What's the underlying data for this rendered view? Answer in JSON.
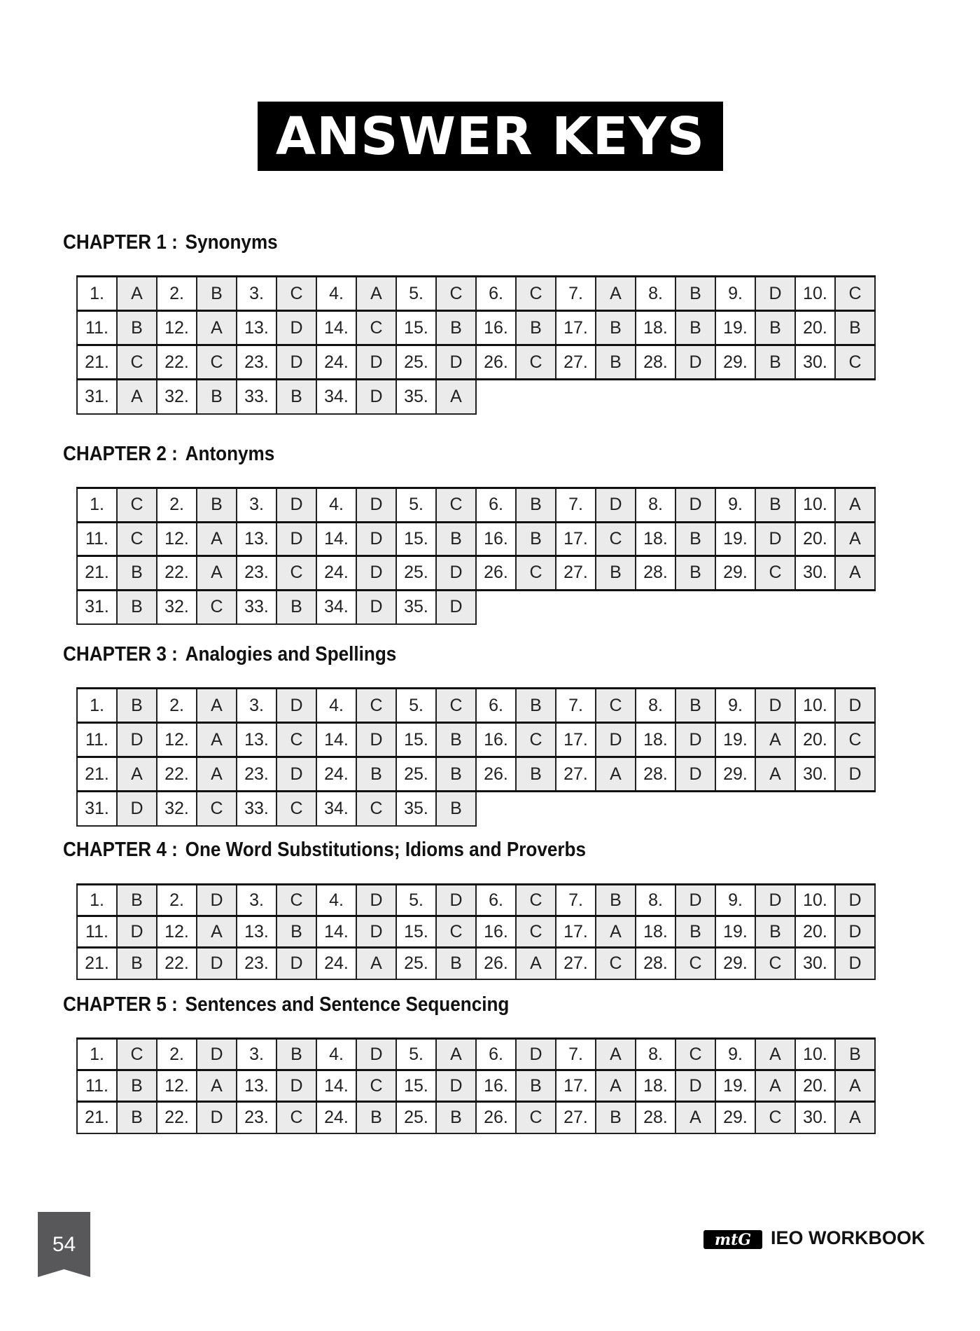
{
  "title": "ANSWER KEYS",
  "chapters": [
    {
      "label": "CHAPTER 1 :",
      "name": "Synonyms",
      "rows": [
        [
          [
            "1.",
            "A"
          ],
          [
            "2.",
            "B"
          ],
          [
            "3.",
            "C"
          ],
          [
            "4.",
            "A"
          ],
          [
            "5.",
            "C"
          ],
          [
            "6.",
            "C"
          ],
          [
            "7.",
            "A"
          ],
          [
            "8.",
            "B"
          ],
          [
            "9.",
            "D"
          ],
          [
            "10.",
            "C"
          ]
        ],
        [
          [
            "11.",
            "B"
          ],
          [
            "12.",
            "A"
          ],
          [
            "13.",
            "D"
          ],
          [
            "14.",
            "C"
          ],
          [
            "15.",
            "B"
          ],
          [
            "16.",
            "B"
          ],
          [
            "17.",
            "B"
          ],
          [
            "18.",
            "B"
          ],
          [
            "19.",
            "B"
          ],
          [
            "20.",
            "B"
          ]
        ],
        [
          [
            "21.",
            "C"
          ],
          [
            "22.",
            "C"
          ],
          [
            "23.",
            "D"
          ],
          [
            "24.",
            "D"
          ],
          [
            "25.",
            "D"
          ],
          [
            "26.",
            "C"
          ],
          [
            "27.",
            "B"
          ],
          [
            "28.",
            "D"
          ],
          [
            "29.",
            "B"
          ],
          [
            "30.",
            "C"
          ]
        ],
        [
          [
            "31.",
            "A"
          ],
          [
            "32.",
            "B"
          ],
          [
            "33.",
            "B"
          ],
          [
            "34.",
            "D"
          ],
          [
            "35.",
            "A"
          ]
        ]
      ]
    },
    {
      "label": "CHAPTER 2 :",
      "name": "Antonyms",
      "rows": [
        [
          [
            "1.",
            "C"
          ],
          [
            "2.",
            "B"
          ],
          [
            "3.",
            "D"
          ],
          [
            "4.",
            "D"
          ],
          [
            "5.",
            "C"
          ],
          [
            "6.",
            "B"
          ],
          [
            "7.",
            "D"
          ],
          [
            "8.",
            "D"
          ],
          [
            "9.",
            "B"
          ],
          [
            "10.",
            "A"
          ]
        ],
        [
          [
            "11.",
            "C"
          ],
          [
            "12.",
            "A"
          ],
          [
            "13.",
            "D"
          ],
          [
            "14.",
            "D"
          ],
          [
            "15.",
            "B"
          ],
          [
            "16.",
            "B"
          ],
          [
            "17.",
            "C"
          ],
          [
            "18.",
            "B"
          ],
          [
            "19.",
            "D"
          ],
          [
            "20.",
            "A"
          ]
        ],
        [
          [
            "21.",
            "B"
          ],
          [
            "22.",
            "A"
          ],
          [
            "23.",
            "C"
          ],
          [
            "24.",
            "D"
          ],
          [
            "25.",
            "D"
          ],
          [
            "26.",
            "C"
          ],
          [
            "27.",
            "B"
          ],
          [
            "28.",
            "B"
          ],
          [
            "29.",
            "C"
          ],
          [
            "30.",
            "A"
          ]
        ],
        [
          [
            "31.",
            "B"
          ],
          [
            "32.",
            "C"
          ],
          [
            "33.",
            "B"
          ],
          [
            "34.",
            "D"
          ],
          [
            "35.",
            "D"
          ]
        ]
      ]
    },
    {
      "label": "CHAPTER 3 :",
      "name": "Analogies and Spellings",
      "rows": [
        [
          [
            "1.",
            "B"
          ],
          [
            "2.",
            "A"
          ],
          [
            "3.",
            "D"
          ],
          [
            "4.",
            "C"
          ],
          [
            "5.",
            "C"
          ],
          [
            "6.",
            "B"
          ],
          [
            "7.",
            "C"
          ],
          [
            "8.",
            "B"
          ],
          [
            "9.",
            "D"
          ],
          [
            "10.",
            "D"
          ]
        ],
        [
          [
            "11.",
            "D"
          ],
          [
            "12.",
            "A"
          ],
          [
            "13.",
            "C"
          ],
          [
            "14.",
            "D"
          ],
          [
            "15.",
            "B"
          ],
          [
            "16.",
            "C"
          ],
          [
            "17.",
            "D"
          ],
          [
            "18.",
            "D"
          ],
          [
            "19.",
            "A"
          ],
          [
            "20.",
            "C"
          ]
        ],
        [
          [
            "21.",
            "A"
          ],
          [
            "22.",
            "A"
          ],
          [
            "23.",
            "D"
          ],
          [
            "24.",
            "B"
          ],
          [
            "25.",
            "B"
          ],
          [
            "26.",
            "B"
          ],
          [
            "27.",
            "A"
          ],
          [
            "28.",
            "D"
          ],
          [
            "29.",
            "A"
          ],
          [
            "30.",
            "D"
          ]
        ],
        [
          [
            "31.",
            "D"
          ],
          [
            "32.",
            "C"
          ],
          [
            "33.",
            "C"
          ],
          [
            "34.",
            "C"
          ],
          [
            "35.",
            "B"
          ]
        ]
      ]
    },
    {
      "label": "CHAPTER 4 :",
      "name": "One Word Substitutions; Idioms and Proverbs",
      "rows": [
        [
          [
            "1.",
            "B"
          ],
          [
            "2.",
            "D"
          ],
          [
            "3.",
            "C"
          ],
          [
            "4.",
            "D"
          ],
          [
            "5.",
            "D"
          ],
          [
            "6.",
            "C"
          ],
          [
            "7.",
            "B"
          ],
          [
            "8.",
            "D"
          ],
          [
            "9.",
            "D"
          ],
          [
            "10.",
            "D"
          ]
        ],
        [
          [
            "11.",
            "D"
          ],
          [
            "12.",
            "A"
          ],
          [
            "13.",
            "B"
          ],
          [
            "14.",
            "D"
          ],
          [
            "15.",
            "C"
          ],
          [
            "16.",
            "C"
          ],
          [
            "17.",
            "A"
          ],
          [
            "18.",
            "B"
          ],
          [
            "19.",
            "B"
          ],
          [
            "20.",
            "D"
          ]
        ],
        [
          [
            "21.",
            "B"
          ],
          [
            "22.",
            "D"
          ],
          [
            "23.",
            "D"
          ],
          [
            "24.",
            "A"
          ],
          [
            "25.",
            "B"
          ],
          [
            "26.",
            "A"
          ],
          [
            "27.",
            "C"
          ],
          [
            "28.",
            "C"
          ],
          [
            "29.",
            "C"
          ],
          [
            "30.",
            "D"
          ]
        ]
      ]
    },
    {
      "label": "CHAPTER 5 :",
      "name": "Sentences and Sentence Sequencing",
      "rows": [
        [
          [
            "1.",
            "C"
          ],
          [
            "2.",
            "D"
          ],
          [
            "3.",
            "B"
          ],
          [
            "4.",
            "D"
          ],
          [
            "5.",
            "A"
          ],
          [
            "6.",
            "D"
          ],
          [
            "7.",
            "A"
          ],
          [
            "8.",
            "C"
          ],
          [
            "9.",
            "A"
          ],
          [
            "10.",
            "B"
          ]
        ],
        [
          [
            "11.",
            "B"
          ],
          [
            "12.",
            "A"
          ],
          [
            "13.",
            "D"
          ],
          [
            "14.",
            "C"
          ],
          [
            "15.",
            "D"
          ],
          [
            "16.",
            "B"
          ],
          [
            "17.",
            "A"
          ],
          [
            "18.",
            "D"
          ],
          [
            "19.",
            "A"
          ],
          [
            "20.",
            "A"
          ]
        ],
        [
          [
            "21.",
            "B"
          ],
          [
            "22.",
            "D"
          ],
          [
            "23.",
            "C"
          ],
          [
            "24.",
            "B"
          ],
          [
            "25.",
            "B"
          ],
          [
            "26.",
            "C"
          ],
          [
            "27.",
            "B"
          ],
          [
            "28.",
            "A"
          ],
          [
            "29.",
            "C"
          ],
          [
            "30.",
            "A"
          ]
        ]
      ]
    }
  ],
  "footer": {
    "page_number": "54",
    "logo_text": "mtG",
    "book_title": "IEO WORKBOOK"
  }
}
